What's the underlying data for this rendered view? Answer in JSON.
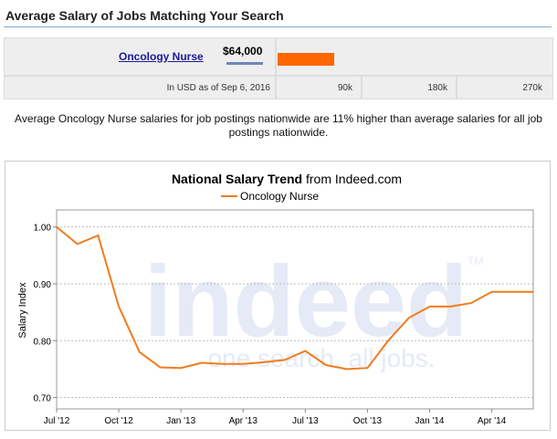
{
  "header": {
    "title": "Average Salary of Jobs Matching Your Search"
  },
  "salary_table": {
    "job_title": "Oncology Nurse",
    "salary": "$64,000",
    "salary_value": 64000,
    "bar_max": 300000,
    "currency_note": "In USD as of Sep 6, 2016",
    "scale_labels": [
      "90k",
      "180k",
      "270k"
    ],
    "bar_color": "#ff6600"
  },
  "description": "Average Oncology Nurse salaries for job postings nationwide are 11% higher than average salaries for all job postings nationwide.",
  "chart_data": {
    "type": "line",
    "title_bold": "National Salary Trend",
    "title_rest": " from Indeed.com",
    "ylabel": "Salary Index",
    "ylim": [
      0.68,
      1.03
    ],
    "xlim": [
      0,
      23
    ],
    "yticks": [
      {
        "v": 1.0,
        "label": "1.00"
      },
      {
        "v": 0.9,
        "label": "0.90"
      },
      {
        "v": 0.8,
        "label": "0.80"
      },
      {
        "v": 0.7,
        "label": "0.70"
      }
    ],
    "xticks": [
      {
        "v": 0,
        "label": "Jul '12"
      },
      {
        "v": 3,
        "label": "Oct '12"
      },
      {
        "v": 6,
        "label": "Jan '13"
      },
      {
        "v": 9,
        "label": "Apr '13"
      },
      {
        "v": 12,
        "label": "Jul '13"
      },
      {
        "v": 15,
        "label": "Oct '13"
      },
      {
        "v": 18,
        "label": "Jan '14"
      },
      {
        "v": 21,
        "label": "Apr '14"
      }
    ],
    "grid": true,
    "legend_position": "top-center",
    "watermark": {
      "main": "indeed",
      "tm": "TM",
      "tagline": "one search. all jobs."
    },
    "series": [
      {
        "name": "Oncology Nurse",
        "color": "#f07c1e",
        "x": [
          0,
          1,
          2,
          3,
          4,
          5,
          6,
          7,
          8,
          9,
          10,
          11,
          12,
          13,
          14,
          15,
          16,
          17,
          18,
          19,
          20,
          21,
          22,
          23
        ],
        "y": [
          1.0,
          0.97,
          0.985,
          0.86,
          0.78,
          0.753,
          0.752,
          0.761,
          0.759,
          0.759,
          0.762,
          0.766,
          0.782,
          0.757,
          0.75,
          0.752,
          0.8,
          0.84,
          0.86,
          0.86,
          0.866,
          0.886,
          0.886,
          0.886
        ]
      }
    ]
  }
}
